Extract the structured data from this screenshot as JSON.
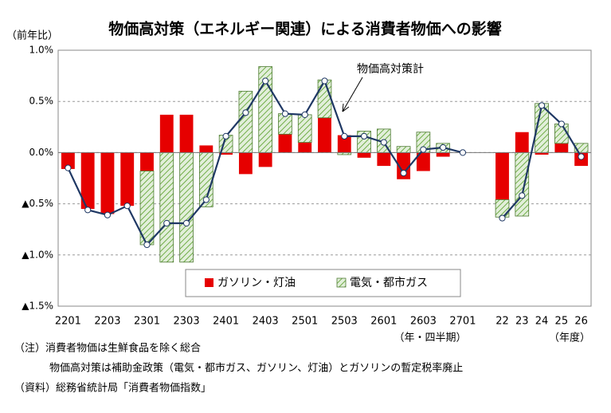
{
  "chart_data": {
    "type": "bar",
    "title": "物価高対策（エネルギー関連）による消費者物価への影響",
    "y_label": "（前年比）",
    "x_unit_labels": [
      "（年・四半期）",
      "（年度）"
    ],
    "notes": [
      "（注）消費者物価は生鮮食品を除く総合",
      "物価高対策は補助金政策（電気・都市ガス、ガソリン、灯油）とガソリンの暫定税率廃止",
      "（資料）総務省統計局「消費者物価指数」"
    ],
    "categories": [
      "2201",
      null,
      "2203",
      null,
      "2301",
      null,
      "2303",
      null,
      "2401",
      null,
      "2403",
      null,
      "2501",
      null,
      "2503",
      null,
      "2601",
      null,
      "2603",
      null,
      "2701",
      null,
      "22",
      "23",
      "24",
      "25",
      "26"
    ],
    "series": [
      {
        "name": "ガソリン・灯油",
        "type": "bar",
        "color": "#e60000",
        "values": [
          -0.16,
          -0.55,
          -0.6,
          -0.52,
          -0.18,
          0.37,
          0.37,
          0.07,
          -0.02,
          -0.21,
          -0.14,
          0.18,
          0.1,
          0.34,
          0.17,
          -0.05,
          -0.13,
          -0.26,
          -0.18,
          -0.04,
          0,
          null,
          -0.46,
          0.2,
          -0.02,
          0.09,
          -0.13
        ]
      },
      {
        "name": "電気・都市ガス",
        "type": "bar",
        "color": "#70ad47",
        "values": [
          0,
          0,
          0,
          0,
          -0.72,
          -1.07,
          -1.07,
          -0.53,
          0.17,
          0.6,
          0.84,
          0.2,
          0.27,
          0.37,
          -0.02,
          0.21,
          0.23,
          0.06,
          0.2,
          0.09,
          0,
          null,
          -0.17,
          -0.62,
          0.48,
          0.19,
          0.09
        ]
      },
      {
        "name": "物価高対策計",
        "type": "line",
        "color": "#1f3864",
        "values": [
          -0.15,
          -0.56,
          -0.61,
          -0.52,
          -0.9,
          -0.69,
          -0.69,
          -0.46,
          0.16,
          0.39,
          0.7,
          0.38,
          0.37,
          0.7,
          0.16,
          0.16,
          0.1,
          -0.2,
          0.03,
          0.05,
          0,
          null,
          -0.64,
          -0.42,
          0.46,
          0.28,
          -0.04
        ]
      }
    ],
    "ylim": [
      -1.5,
      1.0
    ],
    "yticks": [
      {
        "value": -1.5,
        "label": "▲1.5%"
      },
      {
        "value": -1.0,
        "label": "▲1.0%"
      },
      {
        "value": -0.5,
        "label": "▲0.5%"
      },
      {
        "value": 0,
        "label": "0.0%"
      },
      {
        "value": 0.5,
        "label": "0.5%"
      },
      {
        "value": 1.0,
        "label": "1.0%"
      }
    ],
    "grid": true,
    "legend": "bottom"
  }
}
